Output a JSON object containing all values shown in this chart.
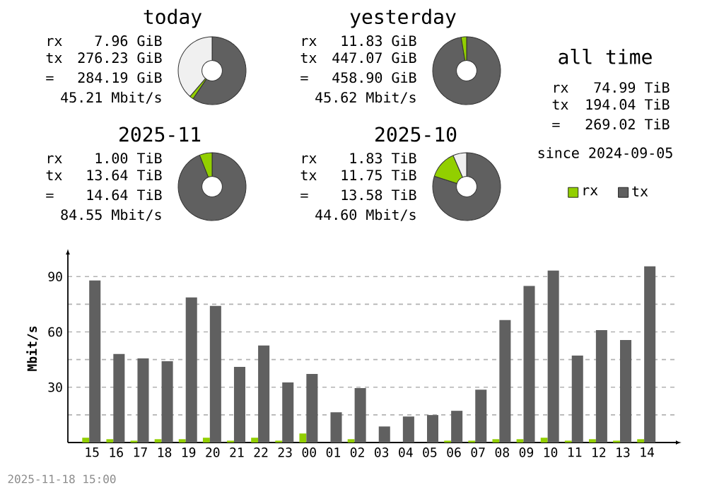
{
  "chart_data": [
    {
      "type": "donut",
      "title": "today",
      "categories": [
        null,
        null,
        null
      ],
      "values": [
        59.5,
        1.8,
        38.7
      ],
      "colors": [
        "#606060",
        "#92cf00",
        "#f0f0f0"
      ],
      "annotations": [
        "rx",
        "7.96 GiB",
        "tx",
        "276.23 GiB",
        "=",
        "284.19 GiB",
        "45.21 Mbit/s"
      ]
    },
    {
      "type": "donut",
      "title": "yesterday",
      "categories": [
        null,
        null
      ],
      "values": [
        97.4,
        2.6
      ],
      "colors": [
        "#606060",
        "#92cf00"
      ],
      "annotations": [
        "rx",
        "11.83 GiB",
        "tx",
        "447.07 GiB",
        "=",
        "458.90 GiB",
        "45.62 Mbit/s"
      ]
    },
    {
      "type": "other",
      "title": "all time",
      "annotations": [
        "rx",
        "74.99 TiB",
        "tx",
        "194.04 TiB",
        "=",
        "269.02 TiB",
        "since 2024-09-05"
      ]
    },
    {
      "type": "donut",
      "title": "2025-11",
      "categories": [
        null,
        null
      ],
      "values": [
        94,
        6
      ],
      "colors": [
        "#606060",
        "#92cf00"
      ],
      "annotations": [
        "rx",
        "1.00 TiB",
        "tx",
        "13.64 TiB",
        "=",
        "14.64 TiB",
        "84.55 Mbit/s"
      ]
    },
    {
      "type": "donut",
      "title": "2025-10",
      "categories": [
        null,
        null,
        null
      ],
      "values": [
        80,
        13.5,
        6.5
      ],
      "colors": [
        "#606060",
        "#92cf00",
        "#f0f0f0"
      ],
      "annotations": [
        "rx",
        "1.83 TiB",
        "tx",
        "11.75 TiB",
        "=",
        "13.58 TiB",
        "44.60 Mbit/s"
      ]
    },
    {
      "type": "bar",
      "ylabel": "Mbit/s",
      "categories": [
        "15",
        "16",
        "17",
        "18",
        "19",
        "20",
        "21",
        "22",
        "23",
        "00",
        "01",
        "02",
        "03",
        "04",
        "05",
        "06",
        "07",
        "08",
        "09",
        "10",
        "11",
        "12",
        "13",
        "14"
      ],
      "series": [
        {
          "name": "rx",
          "color": "#92cf00",
          "values": [
            2.6,
            1.8,
            1.0,
            1.8,
            1.8,
            2.6,
            1.0,
            2.6,
            1.0,
            4.9,
            0,
            1.8,
            0,
            0,
            0,
            1.0,
            1.0,
            1.8,
            1.8,
            2.6,
            1.0,
            1.8,
            1.0,
            1.8
          ]
        },
        {
          "name": "tx",
          "color": "#606060",
          "values": [
            87.9,
            48.0,
            45.6,
            44.1,
            78.7,
            74.1,
            41.0,
            52.6,
            32.6,
            37.2,
            16.4,
            29.5,
            8.7,
            14.1,
            14.9,
            17.2,
            28.7,
            66.4,
            84.9,
            93.3,
            47.2,
            61.0,
            55.6,
            95.6
          ]
        }
      ],
      "ylim": [
        0,
        102
      ],
      "yticks": [
        {
          "value": 15,
          "label": null
        },
        30,
        {
          "value": 45,
          "label": null
        },
        60,
        {
          "value": 75,
          "label": null
        },
        90
      ],
      "grid": "y",
      "legend": "top right",
      "annotations": [
        "2025-11-18 15:00"
      ]
    }
  ]
}
